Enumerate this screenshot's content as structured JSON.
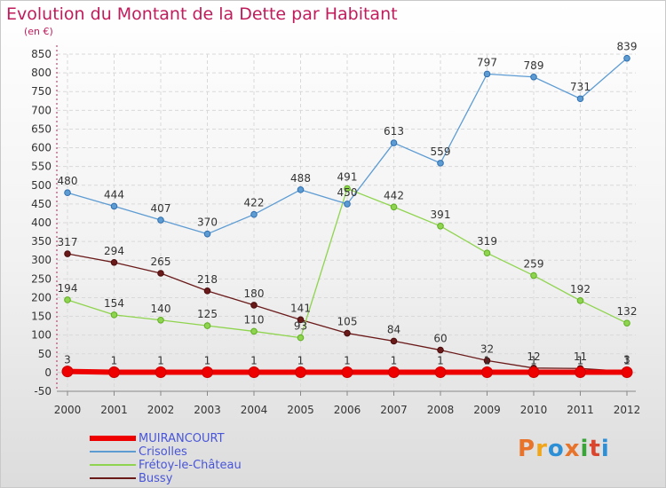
{
  "title": "Evolution du Montant de la Dette par Habitant",
  "unit_label": "(en €)",
  "logo": {
    "text": "Proxiti",
    "letters": [
      "P",
      "r",
      "o",
      "x",
      "i",
      "t",
      "i"
    ],
    "colors": [
      "#e8732a",
      "#f0a51a",
      "#2d8fd6",
      "#e8732a",
      "#3aa43a",
      "#d9452d",
      "#2d8fd6"
    ]
  },
  "chart_data": {
    "type": "line",
    "x": [
      2000,
      2001,
      2002,
      2003,
      2004,
      2005,
      2006,
      2007,
      2008,
      2009,
      2010,
      2011,
      2012
    ],
    "ylim": [
      -50,
      850
    ],
    "yticks": [
      -50,
      0,
      50,
      100,
      150,
      200,
      250,
      300,
      350,
      400,
      450,
      500,
      550,
      600,
      650,
      700,
      750,
      800,
      850
    ],
    "grid": true,
    "legend_position": "bottom-left",
    "series": [
      {
        "name": "MUIRANCOURT",
        "color": "#ee0000",
        "values": [
          3,
          1,
          1,
          1,
          1,
          1,
          1,
          1,
          1,
          1,
          1,
          1,
          1
        ]
      },
      {
        "name": "Crisolles",
        "color": "#5d9cd3",
        "values": [
          480,
          444,
          407,
          370,
          422,
          488,
          450,
          613,
          559,
          797,
          789,
          731,
          839
        ]
      },
      {
        "name": "Frétoy-le-Château",
        "color": "#8fd44e",
        "values": [
          194,
          154,
          140,
          125,
          110,
          93,
          491,
          442,
          391,
          319,
          259,
          192,
          132
        ]
      },
      {
        "name": "Bussy",
        "color": "#6b1a1a",
        "values": [
          317,
          294,
          265,
          218,
          180,
          141,
          105,
          84,
          60,
          32,
          12,
          11,
          3
        ]
      }
    ]
  }
}
